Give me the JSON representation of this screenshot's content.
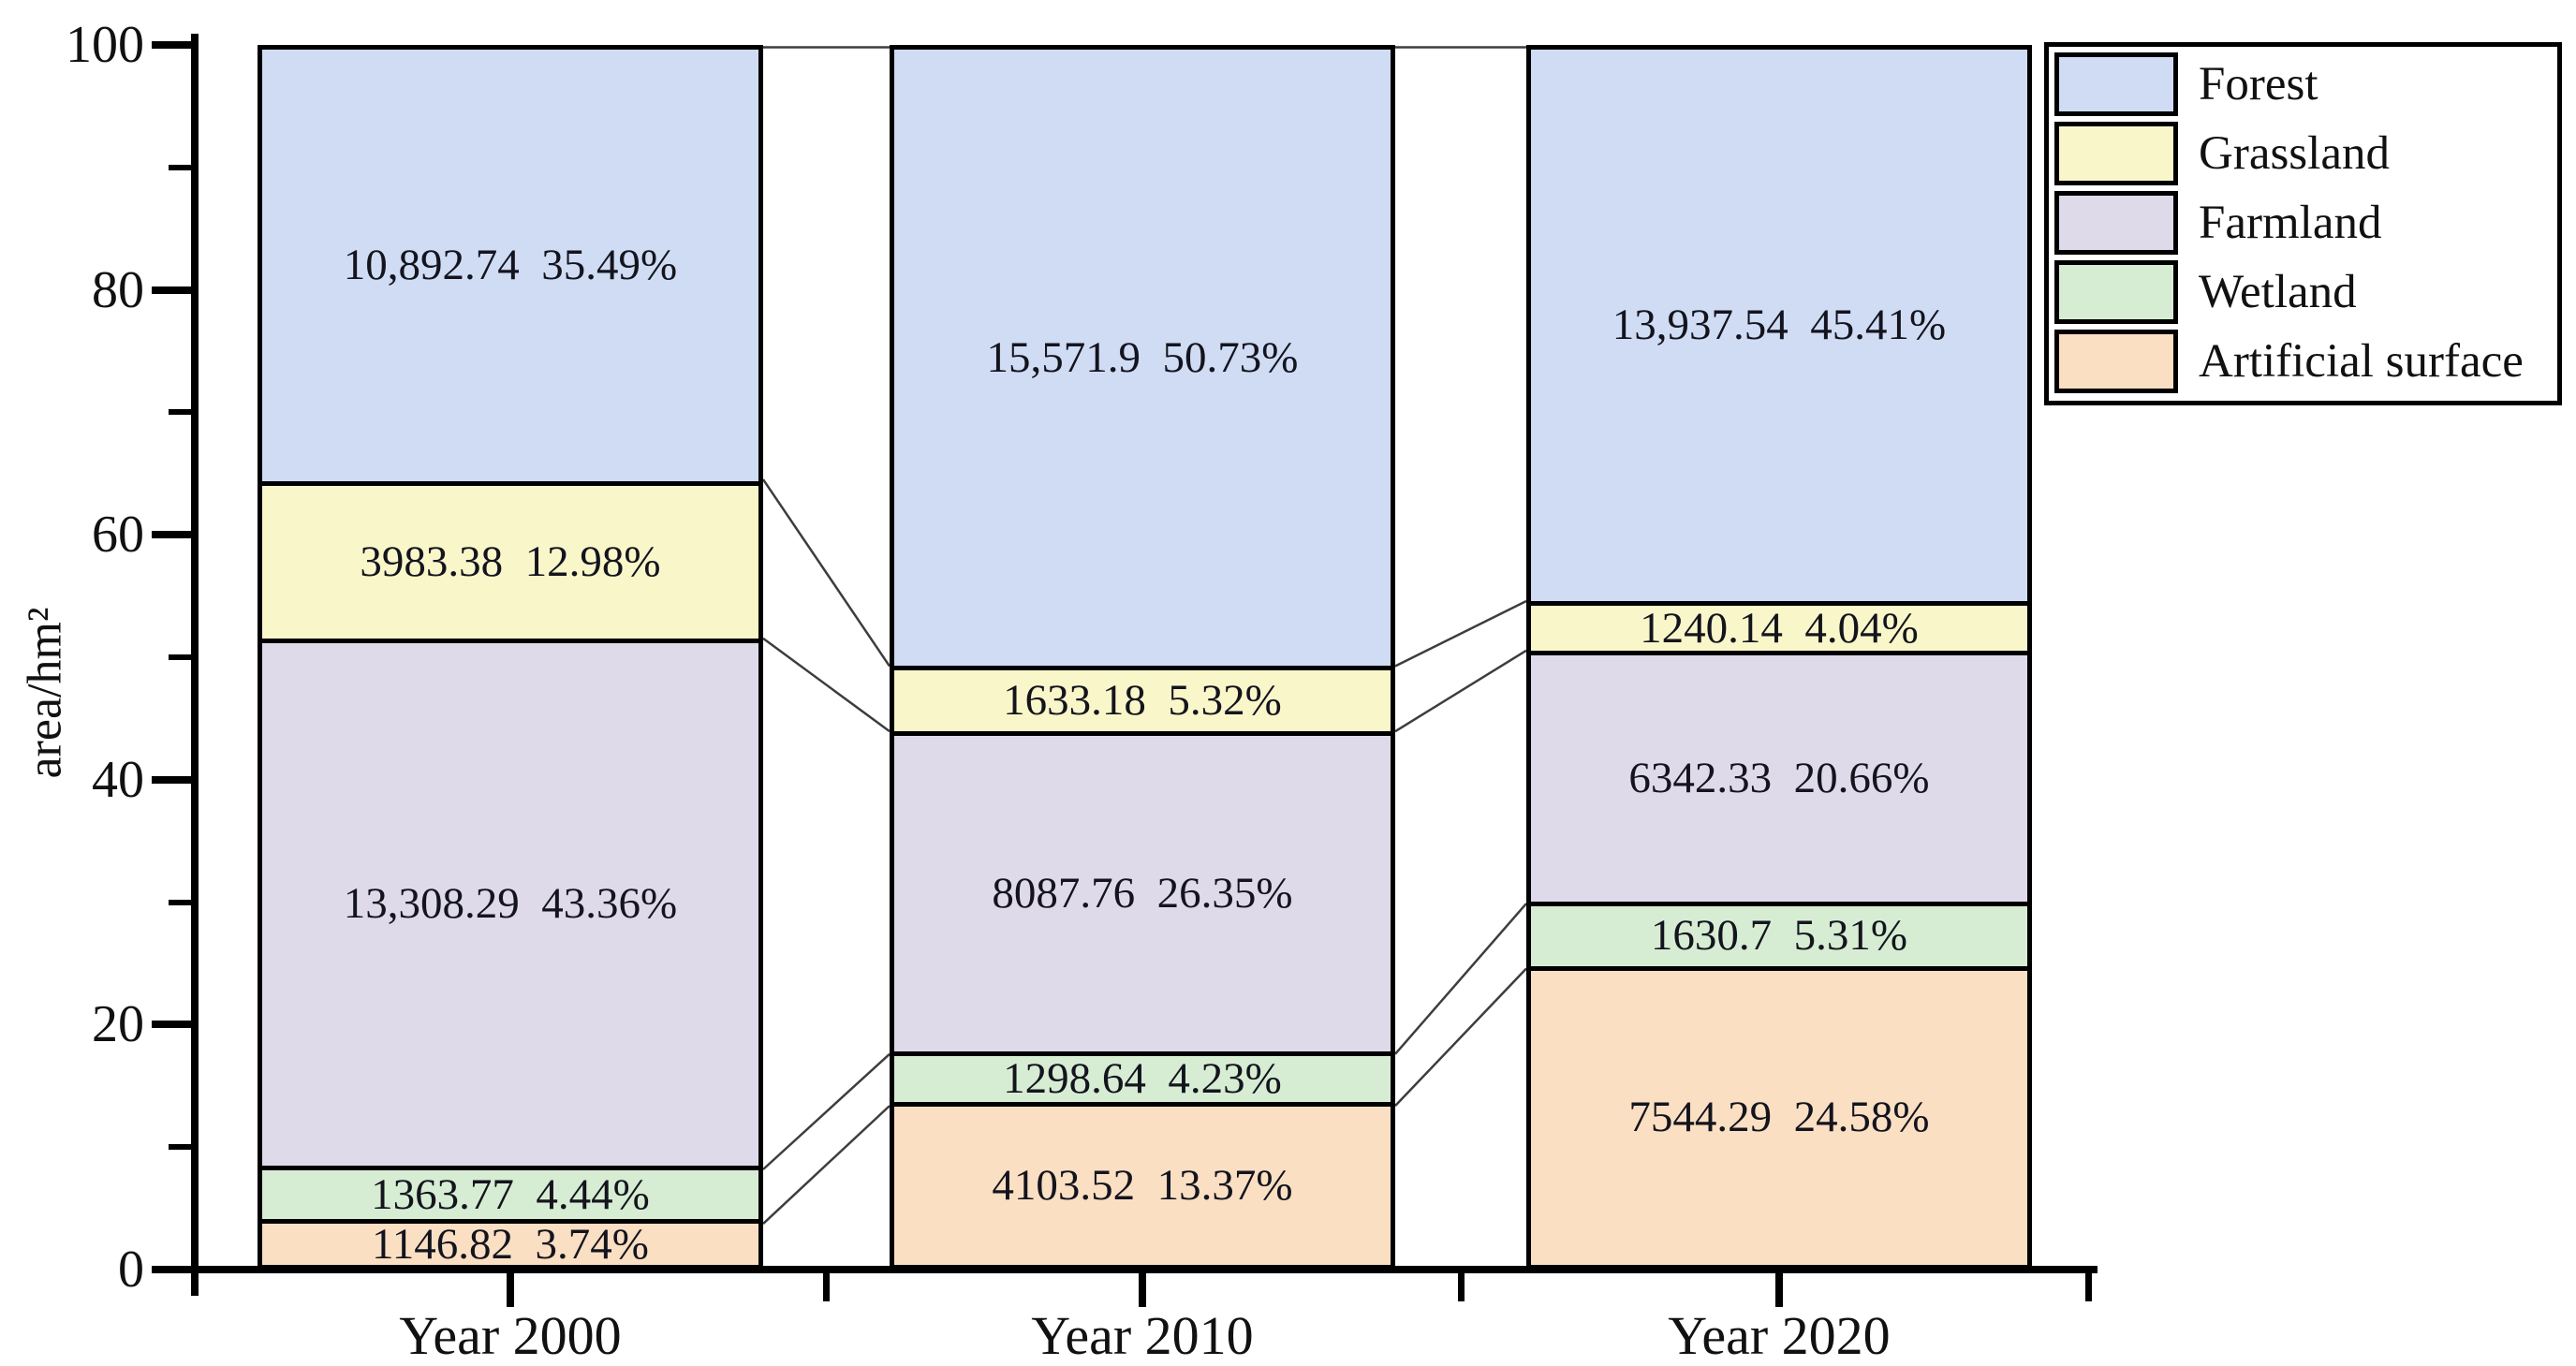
{
  "chart_data": {
    "type": "bar",
    "stacked": true,
    "title": "",
    "xlabel": "",
    "ylabel": "area/hm²",
    "ylim": [
      0,
      100
    ],
    "y_major_ticks": [
      "0",
      "20",
      "40",
      "60",
      "80",
      "100"
    ],
    "y_major_tick_values": [
      0,
      20,
      40,
      60,
      80,
      100
    ],
    "y_minor_tick_values": [
      10,
      30,
      50,
      70,
      90
    ],
    "grid": false,
    "legend_position": "top-right",
    "categories": [
      "Year 2000",
      "Year 2010",
      "Year 2020"
    ],
    "series": [
      {
        "name": "Artificial surface",
        "color": "#fadfc3",
        "values": [
          1146.82,
          4103.52,
          7544.29
        ],
        "values_text": [
          "1146.82",
          "4103.52",
          "7544.29"
        ],
        "pcts": [
          3.74,
          13.37,
          24.58
        ],
        "pcts_text": [
          "3.74%",
          "13.37%",
          "24.58%"
        ]
      },
      {
        "name": "Wetland",
        "color": "#d6edd3",
        "values": [
          1363.77,
          1298.64,
          1630.7
        ],
        "values_text": [
          "1363.77",
          "1298.64",
          "1630.7"
        ],
        "pcts": [
          4.44,
          4.23,
          5.31
        ],
        "pcts_text": [
          "4.44%",
          "4.23%",
          "5.31%"
        ]
      },
      {
        "name": "Farmland",
        "color": "#dfdaea",
        "values": [
          13308.29,
          8087.76,
          6342.33
        ],
        "values_text": [
          "13,308.29",
          "8087.76",
          "6342.33"
        ],
        "pcts": [
          43.36,
          26.35,
          20.66
        ],
        "pcts_text": [
          "43.36%",
          "26.35%",
          "20.66%"
        ]
      },
      {
        "name": "Grassland",
        "color": "#f9f7c9",
        "values": [
          3983.38,
          1633.18,
          1240.14
        ],
        "values_text": [
          "3983.38",
          "1633.18",
          "1240.14"
        ],
        "pcts": [
          12.98,
          5.32,
          4.04
        ],
        "pcts_text": [
          "12.98%",
          "5.32%",
          "4.04%"
        ]
      },
      {
        "name": "Forest",
        "color": "#cfdcf4",
        "values": [
          10892.74,
          15571.9,
          13937.54
        ],
        "values_text": [
          "10,892.74",
          "15,571.9",
          "13,937.54"
        ],
        "pcts": [
          35.49,
          50.73,
          45.41
        ],
        "pcts_text": [
          "35.49%",
          "50.73%",
          "45.41%"
        ]
      }
    ],
    "legend": [
      "Forest",
      "Grassland",
      "Farmland",
      "Wetland",
      "Artificial surface"
    ],
    "colors": {
      "axis": "#000000",
      "segment_border": "#000000",
      "connector": "#3d3d3d",
      "text": "#111111"
    }
  }
}
